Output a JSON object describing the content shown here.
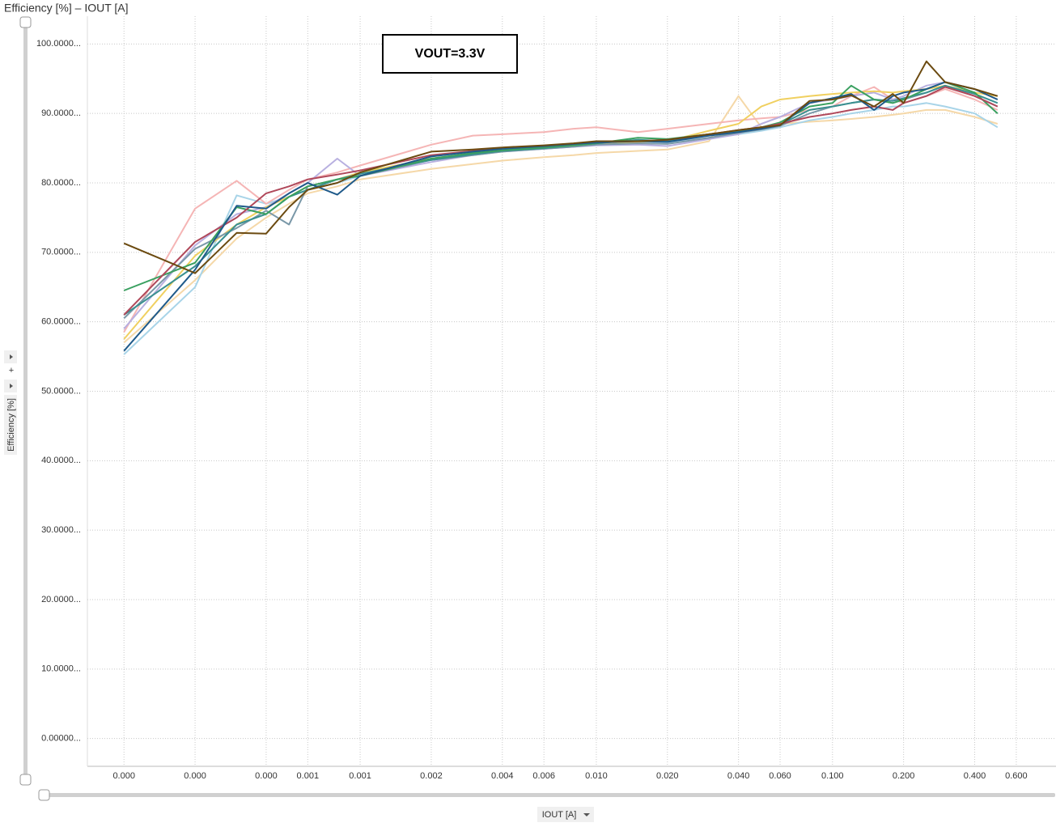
{
  "chart_data": {
    "type": "line",
    "title": "Efficiency [%] – IOUT [A]",
    "x_label": "IOUT [A]",
    "y_label": "Efficiency [%]",
    "annotation": "VOUT=3.3V",
    "x_scale": "log",
    "grid": true,
    "xlim": [
      7e-05,
      0.87
    ],
    "ylim": [
      -4,
      104
    ],
    "xticks": [
      {
        "value": 0.0001,
        "label": "0.000"
      },
      {
        "value": 0.0002,
        "label": "0.000"
      },
      {
        "value": 0.0004,
        "label": "0.000"
      },
      {
        "value": 0.0006,
        "label": "0.001"
      },
      {
        "value": 0.001,
        "label": "0.001"
      },
      {
        "value": 0.002,
        "label": "0.002"
      },
      {
        "value": 0.004,
        "label": "0.004"
      },
      {
        "value": 0.006,
        "label": "0.006"
      },
      {
        "value": 0.01,
        "label": "0.010"
      },
      {
        "value": 0.02,
        "label": "0.020"
      },
      {
        "value": 0.04,
        "label": "0.040"
      },
      {
        "value": 0.06,
        "label": "0.060"
      },
      {
        "value": 0.1,
        "label": "0.100"
      },
      {
        "value": 0.2,
        "label": "0.200"
      },
      {
        "value": 0.4,
        "label": "0.400"
      },
      {
        "value": 0.6,
        "label": "0.600"
      }
    ],
    "yticks": [
      {
        "value": 0,
        "label": "0.00000..."
      },
      {
        "value": 10,
        "label": "10.0000..."
      },
      {
        "value": 20,
        "label": "20.0000..."
      },
      {
        "value": 30,
        "label": "30.0000..."
      },
      {
        "value": 40,
        "label": "40.0000..."
      },
      {
        "value": 50,
        "label": "50.0000..."
      },
      {
        "value": 60,
        "label": "60.0000..."
      },
      {
        "value": 70,
        "label": "70.0000..."
      },
      {
        "value": 80,
        "label": "80.0000..."
      },
      {
        "value": 90,
        "label": "90.0000..."
      },
      {
        "value": 100,
        "label": "100.0000..."
      }
    ],
    "x": [
      0.0001,
      0.0002,
      0.0003,
      0.0004,
      0.0005,
      0.0006,
      0.0008,
      0.001,
      0.002,
      0.003,
      0.004,
      0.006,
      0.008,
      0.01,
      0.015,
      0.02,
      0.03,
      0.04,
      0.05,
      0.06,
      0.08,
      0.1,
      0.12,
      0.15,
      0.18,
      0.2,
      0.25,
      0.3,
      0.4,
      0.5
    ],
    "series": [
      {
        "color": "#f5d8a8",
        "values": [
          57.0,
          66.0,
          72.0,
          75.0,
          77.0,
          78.5,
          79.5,
          80.5,
          82.0,
          82.7,
          83.2,
          83.7,
          84.0,
          84.3,
          84.6,
          84.8,
          86.0,
          92.5,
          88.0,
          88.5,
          88.8,
          89.0,
          89.2,
          89.5,
          89.8,
          90.0,
          90.5,
          90.5,
          89.5,
          88.5
        ]
      },
      {
        "color": "#a8d4e8",
        "values": [
          55.3,
          65.0,
          78.2,
          77.0,
          78.0,
          79.0,
          80.0,
          81.0,
          83.5,
          84.3,
          84.8,
          85.2,
          85.5,
          85.8,
          86.0,
          85.8,
          86.5,
          87.0,
          87.5,
          88.0,
          89.0,
          89.5,
          90.0,
          90.5,
          91.0,
          91.0,
          91.5,
          91.0,
          90.0,
          88.0
        ]
      },
      {
        "color": "#f5b5b5",
        "values": [
          58.5,
          76.3,
          80.3,
          77.0,
          79.0,
          80.5,
          81.5,
          82.5,
          85.5,
          86.8,
          87.0,
          87.3,
          87.8,
          88.0,
          87.3,
          87.8,
          88.5,
          89.0,
          89.3,
          89.5,
          90.5,
          91.0,
          92.5,
          93.8,
          92.0,
          91.5,
          92.5,
          93.5,
          92.0,
          90.5
        ]
      },
      {
        "color": "#b8b0e0",
        "values": [
          59.0,
          71.0,
          75.5,
          76.5,
          78.5,
          80.0,
          83.5,
          81.0,
          83.0,
          84.0,
          84.5,
          84.9,
          85.2,
          85.4,
          85.5,
          85.3,
          86.3,
          87.0,
          88.5,
          89.5,
          91.5,
          92.0,
          92.5,
          93.0,
          92.0,
          92.5,
          94.0,
          94.5,
          93.5,
          92.0
        ]
      },
      {
        "color": "#f0d060",
        "values": [
          57.5,
          69.5,
          74.0,
          76.5,
          78.0,
          79.5,
          80.5,
          81.5,
          83.5,
          84.2,
          84.6,
          85.0,
          85.3,
          85.6,
          85.9,
          86.0,
          87.5,
          88.5,
          91.0,
          92.0,
          92.5,
          92.8,
          93.0,
          93.2,
          93.0,
          93.2,
          93.5,
          94.0,
          93.0,
          92.5
        ]
      },
      {
        "color": "#7a98a8",
        "values": [
          60.5,
          70.5,
          73.5,
          76.0,
          74.0,
          79.5,
          80.5,
          81.0,
          83.3,
          84.0,
          84.5,
          84.9,
          85.2,
          85.5,
          85.7,
          85.6,
          86.5,
          87.2,
          87.7,
          88.2,
          90.0,
          91.0,
          91.5,
          92.0,
          91.5,
          92.0,
          93.0,
          94.0,
          92.5,
          91.0
        ]
      },
      {
        "color": "#3a9090",
        "values": [
          61.0,
          68.0,
          74.0,
          75.5,
          78.0,
          79.0,
          80.5,
          81.3,
          83.3,
          84.1,
          84.6,
          85.0,
          85.4,
          85.7,
          86.2,
          86.0,
          86.9,
          87.4,
          87.8,
          88.4,
          90.5,
          91.0,
          91.5,
          92.0,
          91.8,
          92.2,
          93.0,
          94.0,
          92.8,
          91.5
        ]
      },
      {
        "color": "#3aa060",
        "values": [
          64.5,
          68.5,
          76.5,
          75.5,
          78.0,
          79.5,
          80.5,
          81.0,
          83.5,
          84.3,
          84.7,
          85.1,
          85.4,
          85.7,
          86.5,
          86.3,
          87.0,
          87.5,
          88.0,
          88.7,
          91.0,
          91.5,
          94.0,
          92.0,
          91.5,
          92.0,
          93.5,
          94.5,
          93.0,
          90.0
        ]
      },
      {
        "color": "#b0485a",
        "values": [
          61.0,
          71.5,
          75.0,
          78.5,
          79.5,
          80.5,
          81.2,
          81.8,
          84.0,
          84.6,
          85.0,
          85.3,
          85.6,
          85.9,
          86.0,
          86.2,
          87.0,
          87.6,
          88.0,
          88.5,
          89.5,
          90.0,
          90.5,
          91.0,
          90.5,
          91.5,
          92.5,
          93.8,
          92.5,
          91.0
        ]
      },
      {
        "color": "#1f5a8a",
        "values": [
          55.8,
          67.5,
          76.7,
          76.3,
          78.5,
          80.0,
          78.3,
          81.0,
          83.8,
          84.5,
          84.9,
          85.3,
          85.6,
          85.8,
          86.0,
          85.9,
          86.8,
          87.3,
          87.8,
          88.3,
          91.5,
          92.2,
          92.8,
          90.5,
          92.5,
          93.0,
          93.5,
          94.5,
          93.5,
          92.0
        ]
      },
      {
        "color": "#6b4a10",
        "values": [
          71.3,
          67.0,
          72.8,
          72.7,
          76.5,
          79.0,
          80.0,
          81.5,
          84.5,
          84.8,
          85.1,
          85.4,
          85.7,
          86.0,
          86.0,
          86.2,
          87.0,
          87.6,
          88.0,
          88.3,
          91.8,
          92.0,
          92.6,
          91.0,
          92.8,
          91.5,
          97.5,
          94.5,
          93.5,
          92.5
        ]
      }
    ]
  }
}
